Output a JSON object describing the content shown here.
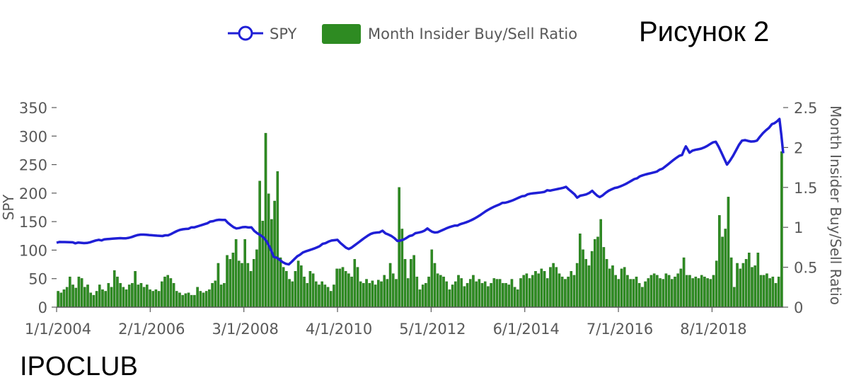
{
  "figure_label": "Рисунок 2",
  "watermark": "IPOCLUB",
  "colors": {
    "spy": "#1f1fd6",
    "ratio": "#2e8b22",
    "ratio_edge": "#1f6b16",
    "axis": "#595959"
  },
  "chart_data": {
    "type": "bar+line",
    "title": "",
    "legend": {
      "placement": "top-right",
      "entries": [
        {
          "name": "SPY",
          "marker": "line-circle"
        },
        {
          "name": "Month Insider Buy/Sell Ratio",
          "marker": "bar"
        }
      ]
    },
    "x": {
      "type": "date",
      "start": "2004-01",
      "end": "2020-03",
      "tick_labels": [
        "1/1/2004",
        "2/1/2006",
        "3/1/2008",
        "4/1/2010",
        "5/1/2012",
        "6/1/2014",
        "7/1/2016",
        "8/1/2018"
      ]
    },
    "y_left": {
      "label": "SPY",
      "range": [
        0,
        350
      ],
      "ticks": [
        0,
        50,
        100,
        150,
        200,
        250,
        300,
        350
      ]
    },
    "y_right": {
      "label": "Month Insider Buy/Sell Ratio",
      "range": [
        0,
        2.5
      ],
      "ticks": [
        "0",
        "0.5",
        "1",
        "1.5",
        "2",
        "2.5"
      ]
    },
    "series": [
      {
        "name": "SPY",
        "kind": "line",
        "axis": "left",
        "points": [
          [
            "2004-01",
            113
          ],
          [
            "2004-06",
            112
          ],
          [
            "2005-01",
            117
          ],
          [
            "2005-06",
            121
          ],
          [
            "2006-01",
            127
          ],
          [
            "2006-06",
            126
          ],
          [
            "2007-01",
            140
          ],
          [
            "2007-06",
            150
          ],
          [
            "2007-10",
            153
          ],
          [
            "2008-01",
            138
          ],
          [
            "2008-05",
            140
          ],
          [
            "2008-09",
            116
          ],
          [
            "2008-11",
            88
          ],
          [
            "2009-03",
            75
          ],
          [
            "2009-06",
            92
          ],
          [
            "2009-12",
            111
          ],
          [
            "2010-04",
            118
          ],
          [
            "2010-07",
            102
          ],
          [
            "2010-12",
            125
          ],
          [
            "2011-04",
            134
          ],
          [
            "2011-08",
            116
          ],
          [
            "2011-12",
            126
          ],
          [
            "2012-04",
            138
          ],
          [
            "2012-06",
            131
          ],
          [
            "2012-12",
            143
          ],
          [
            "2013-06",
            161
          ],
          [
            "2013-12",
            183
          ],
          [
            "2014-06",
            195
          ],
          [
            "2014-12",
            205
          ],
          [
            "2015-05",
            211
          ],
          [
            "2015-08",
            192
          ],
          [
            "2015-12",
            204
          ],
          [
            "2016-02",
            193
          ],
          [
            "2016-06",
            209
          ],
          [
            "2016-12",
            226
          ],
          [
            "2017-06",
            241
          ],
          [
            "2017-12",
            267
          ],
          [
            "2018-01",
            282
          ],
          [
            "2018-02",
            271
          ],
          [
            "2018-09",
            290
          ],
          [
            "2018-12",
            250
          ],
          [
            "2019-04",
            292
          ],
          [
            "2019-08",
            292
          ],
          [
            "2019-12",
            321
          ],
          [
            "2020-02",
            330
          ],
          [
            "2020-03",
            270
          ]
        ]
      },
      {
        "name": "Month Insider Buy/Sell Ratio",
        "kind": "bar",
        "axis": "right",
        "values": [
          0.2,
          0.18,
          0.22,
          0.25,
          0.38,
          0.28,
          0.24,
          0.38,
          0.36,
          0.25,
          0.28,
          0.18,
          0.15,
          0.2,
          0.28,
          0.22,
          0.2,
          0.3,
          0.25,
          0.46,
          0.38,
          0.3,
          0.25,
          0.22,
          0.28,
          0.3,
          0.45,
          0.28,
          0.3,
          0.25,
          0.28,
          0.22,
          0.2,
          0.22,
          0.2,
          0.32,
          0.38,
          0.4,
          0.36,
          0.3,
          0.2,
          0.18,
          0.15,
          0.17,
          0.18,
          0.15,
          0.15,
          0.25,
          0.2,
          0.18,
          0.2,
          0.22,
          0.3,
          0.33,
          0.55,
          0.28,
          0.3,
          0.65,
          0.6,
          0.68,
          0.85,
          0.58,
          0.55,
          0.85,
          0.55,
          0.45,
          0.6,
          0.72,
          1.58,
          1.08,
          2.18,
          1.42,
          1.1,
          1.33,
          1.7,
          0.62,
          0.5,
          0.45,
          0.35,
          0.32,
          0.45,
          0.58,
          0.52,
          0.38,
          0.3,
          0.45,
          0.42,
          0.32,
          0.28,
          0.32,
          0.28,
          0.25,
          0.2,
          0.28,
          0.48,
          0.48,
          0.5,
          0.45,
          0.42,
          0.38,
          0.6,
          0.5,
          0.32,
          0.3,
          0.35,
          0.3,
          0.33,
          0.28,
          0.34,
          0.32,
          0.4,
          0.35,
          0.55,
          0.42,
          0.35,
          1.5,
          0.98,
          0.6,
          0.36,
          0.6,
          0.65,
          0.38,
          0.22,
          0.28,
          0.3,
          0.38,
          0.72,
          0.55,
          0.42,
          0.4,
          0.38,
          0.32,
          0.22,
          0.28,
          0.32,
          0.4,
          0.36,
          0.26,
          0.3,
          0.35,
          0.4,
          0.32,
          0.35,
          0.3,
          0.32,
          0.26,
          0.3,
          0.36,
          0.35,
          0.35,
          0.3,
          0.3,
          0.28,
          0.35,
          0.25,
          0.22,
          0.36,
          0.4,
          0.42,
          0.36,
          0.4,
          0.45,
          0.42,
          0.48,
          0.45,
          0.36,
          0.5,
          0.55,
          0.5,
          0.42,
          0.38,
          0.35,
          0.38,
          0.45,
          0.4,
          0.55,
          0.92,
          0.72,
          0.6,
          0.52,
          0.7,
          0.85,
          0.88,
          1.1,
          0.75,
          0.6,
          0.48,
          0.52,
          0.4,
          0.35,
          0.48,
          0.5,
          0.4,
          0.35,
          0.35,
          0.38,
          0.3,
          0.25,
          0.32,
          0.36,
          0.4,
          0.42,
          0.4,
          0.36,
          0.35,
          0.42,
          0.4,
          0.35,
          0.38,
          0.42,
          0.48,
          0.62,
          0.4,
          0.4,
          0.36,
          0.38,
          0.36,
          0.4,
          0.38,
          0.36,
          0.35,
          0.4,
          0.58,
          1.15,
          0.88,
          0.98,
          1.38,
          0.62,
          0.25,
          0.55,
          0.48,
          0.55,
          0.6,
          0.68,
          0.5,
          0.52,
          0.68,
          0.4,
          0.4,
          0.42,
          0.36,
          0.38,
          0.3,
          0.38,
          1.95
        ]
      }
    ]
  }
}
